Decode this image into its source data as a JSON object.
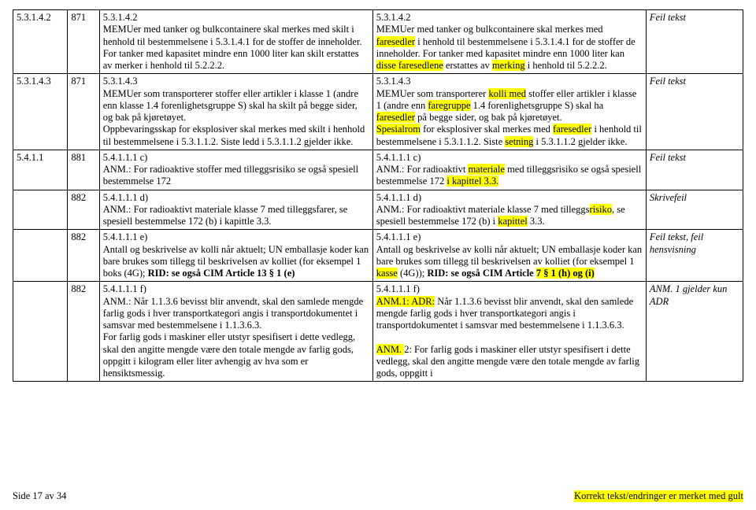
{
  "rows": [
    {
      "c1": "5.3.1.4.2",
      "c2": "871",
      "c3": "5.3.1.4.2\n MEMUer med tanker og bulkcontainere skal merkes med skilt i henhold til bestemmelsene i 5.3.1.4.1 for de stoffer de inneholder. For tanker med kapasitet mindre enn 1000 liter kan skilt erstattes av merker i henhold til 5.2.2.2.",
      "c4": [
        {
          "t": "5.3.1.4.2\n MEMUer med tanker og bulkcontainere skal merkes med "
        },
        {
          "t": "faresedler",
          "h": true
        },
        {
          "t": " i henhold til bestemmelsene i 5.3.1.4.1 for de stoffer de inneholder. For tanker med kapasitet mindre enn 1000 liter kan "
        },
        {
          "t": "disse faresedlene",
          "h": true
        },
        {
          "t": " erstattes av "
        },
        {
          "t": "merking",
          "h": true
        },
        {
          "t": " i henhold til 5.2.2.2."
        }
      ],
      "c5": "Feil tekst",
      "c5i": true
    },
    {
      "c1": "5.3.1.4.3",
      "c2": "871",
      "c3": "5.3.1.4.3\nMEMUer som transporterer stoffer eller artikler i klasse 1 (andre enn klasse 1.4 forenlighetsgruppe S) skal ha skilt på begge sider, og bak på kjøretøyet.\n Oppbevaringsskap for eksplosiver skal merkes med skilt i henhold til bestemmelsene i 5.3.1.1.2. Siste ledd i 5.3.1.1.2 gjelder ikke.",
      "c4": [
        {
          "t": "5.3.1.4.3\nMEMUer som transporterer "
        },
        {
          "t": "kolli med",
          "h": true
        },
        {
          "t": " stoffer eller artikler i klasse 1 (andre enn "
        },
        {
          "t": "faregruppe",
          "h": true
        },
        {
          "t": " 1.4 forenlighetsgruppe S) skal ha "
        },
        {
          "t": "faresedler",
          "h": true
        },
        {
          "t": " på begge sider, og bak på kjøretøyet.\n "
        },
        {
          "t": "Spesialrom",
          "h": true
        },
        {
          "t": " for eksplosiver skal merkes med "
        },
        {
          "t": "faresedler",
          "h": true
        },
        {
          "t": " i henhold til bestemmelsene i 5.3.1.1.2. Siste "
        },
        {
          "t": "setning",
          "h": true
        },
        {
          "t": " i 5.3.1.1.2 gjelder ikke."
        }
      ],
      "c5": "Feil tekst",
      "c5i": true
    },
    {
      "c1": "5.4.1.1",
      "c2": "881",
      "c3": "5.4.1.1.1 c)\nANM.: For radioaktive stoffer med tilleggsrisiko se også spesiell bestemmelse 172",
      "c4": [
        {
          "t": "5.4.1.1.1 c)\nANM.: For radioaktivt "
        },
        {
          "t": "materiale",
          "h": true
        },
        {
          "t": " med tilleggsrisiko se også spesiell bestemmelse 172 "
        },
        {
          "t": "i kapittel 3.3.",
          "h": true
        }
      ],
      "c5": "Feil tekst",
      "c5i": true
    },
    {
      "c1": "",
      "c2": "882",
      "c3": "5.4.1.1.1 d)\nANM.: For radioaktivt materiale klasse 7 med tilleggsfarer, se spesiell bestemmelse 172 (b) i kapittle 3.3.",
      "c4": [
        {
          "t": "5.4.1.1.1 d)\nANM.: For radioaktivt materiale klasse 7 med tilleggs"
        },
        {
          "t": "risiko",
          "h": true
        },
        {
          "t": ", se spesiell bestemmelse 172 (b) i "
        },
        {
          "t": "kapittel",
          "h": true
        },
        {
          "t": " 3.3."
        }
      ],
      "c5": "Skrivefeil",
      "c5i": true
    },
    {
      "c1": "",
      "c2": "882",
      "c3": "5.4.1.1.1 e)\nAntall og beskrivelse av kolli når aktuelt; UN emballasje koder kan bare brukes som tillegg til beskrivelsen av kolliet (for eksempel 1 boks (4G); <b>RID: se også CIM Article 13 § 1 (e)</b>",
      "c4": [
        {
          "t": "5.4.1.1.1 e)\nAntall og beskrivelse av kolli når aktuelt; UN emballasje koder kan bare brukes som tillegg til beskrivelsen av kolliet (for eksempel 1 "
        },
        {
          "t": "kasse",
          "h": true
        },
        {
          "t": " (4G)); "
        },
        {
          "t": "RID: se også CIM Article ",
          "b": true
        },
        {
          "t": "7 § 1 (h) og (i)",
          "h": true,
          "b": true
        }
      ],
      "c5": "Feil tekst, feil hensvisning",
      "c5i": true
    },
    {
      "c1": "",
      "c2": "882",
      "c3": "5.4.1.1.1 f)\nANM.: Når 1.1.3.6 bevisst blir anvendt, skal den samlede mengde farlig gods i hver transportkategori angis i transportdokumentet i samsvar med bestemmelsene i 1.1.3.6.3.\nFor farlig gods i maskiner eller utstyr spesifisert i dette vedlegg, skal den angitte mengde være den totale mengde av farlig gods, oppgitt i kilogram eller liter avhengig av hva som er hensiktsmessig.",
      "c4": [
        {
          "t": "5.4.1.1.1 f)\n"
        },
        {
          "t": "ANM.1: ADR:",
          "h": true
        },
        {
          "t": " Når 1.1.3.6 bevisst blir anvendt, skal den samlede mengde farlig gods i hver transportkategori angis i transportdokumentet i samsvar med bestemmelsene i 1.1.3.6.3.\n\n"
        },
        {
          "t": "ANM. ",
          "h": true
        },
        {
          "t": "2: For farlig gods i maskiner eller utstyr spesifisert i dette vedlegg, skal den angitte mengde være den totale mengde av farlig gods, oppgitt i"
        }
      ],
      "c5": "ANM. 1 gjelder kun ADR",
      "c5i": true
    }
  ],
  "footer_left": "Side 17 av 34",
  "footer_right": "Korrekt tekst/endringer er merket med gult"
}
